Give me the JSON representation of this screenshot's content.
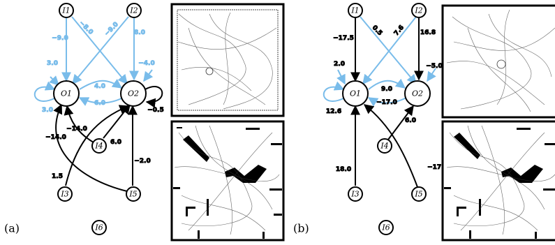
{
  "panels": [
    {
      "letter": "(a)",
      "nodes": {
        "I1": "I1",
        "I2": "I2",
        "O1": "O1",
        "O2": "O2",
        "I3": "I3",
        "I4": "I4",
        "I5": "I5",
        "I6": "I6"
      },
      "weights": {
        "i1_o1": "−9.0",
        "i1_o2": "−8.0",
        "i2_o1": "−9.0",
        "i2_o2": "8.0",
        "o1_self": "3.0",
        "o1_bias": "3.0",
        "o2_bias": "−4.0",
        "o2_self": "−0.5",
        "o1_o2": "4.0",
        "o2_o1": "6.0",
        "i4_o1": "−14.0",
        "i3_o1": "−14.0",
        "i4_o2": "6.0",
        "i3_o2": "1.5",
        "i5_o2": "−2.0"
      }
    },
    {
      "letter": "(b)",
      "nodes": {
        "I1": "I1",
        "I2": "I2",
        "O1": "O1",
        "O2": "O2",
        "I3": "I3",
        "I4": "I4",
        "I5": "I5",
        "I6": "I6"
      },
      "weights": {
        "i1_o1": "−17.5",
        "i1_o2": "0.5",
        "i2_o1": "7.6",
        "i2_o2": "16.8",
        "o1_bias": "2.0",
        "o1_self": "12.6",
        "o2_bias": "−5.0",
        "o1_o2": "9.0",
        "o2_o1": "−17.0",
        "i3_o1": "18.0",
        "i4_o2": "6.0",
        "i5_o1": "−17.0"
      }
    }
  ],
  "colors": {
    "excitatory_blue": "#79bcea",
    "black": "#000000"
  }
}
